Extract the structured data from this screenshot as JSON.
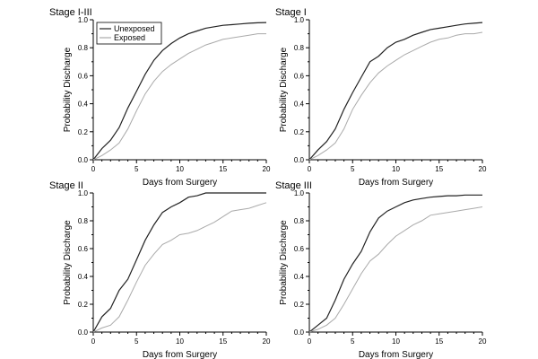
{
  "colors": {
    "unexposed": "#222222",
    "exposed": "#aaaaaa",
    "axis": "#000000"
  },
  "legend": {
    "items": [
      "Unexposed",
      "Exposed"
    ],
    "placement": "top-left"
  },
  "chart_data": [
    {
      "type": "line",
      "title": "Stage I-III",
      "xlabel": "Days from Surgery",
      "ylabel": "Probability Discharge",
      "xlim": [
        0,
        20
      ],
      "ylim": [
        0,
        1.0
      ],
      "xticks": [
        "0",
        "5",
        "10",
        "15",
        "20"
      ],
      "yticks": [
        "0.0",
        "0.2",
        "0.4",
        "0.6",
        "0.8",
        "1.0"
      ],
      "grid": false,
      "legend": "top-left",
      "series": [
        {
          "name": "Unexposed",
          "x": [
            0,
            1,
            2,
            3,
            4,
            5,
            6,
            7,
            8,
            9,
            10,
            11,
            12,
            13,
            14,
            15,
            16,
            17,
            18,
            19,
            20
          ],
          "y": [
            0.0,
            0.08,
            0.14,
            0.23,
            0.37,
            0.49,
            0.61,
            0.71,
            0.78,
            0.83,
            0.87,
            0.9,
            0.92,
            0.94,
            0.95,
            0.96,
            0.965,
            0.97,
            0.975,
            0.978,
            0.98
          ]
        },
        {
          "name": "Exposed",
          "x": [
            0,
            1,
            2,
            3,
            4,
            5,
            6,
            7,
            8,
            9,
            10,
            11,
            12,
            13,
            14,
            15,
            16,
            17,
            18,
            19,
            20
          ],
          "y": [
            0.0,
            0.03,
            0.07,
            0.12,
            0.22,
            0.35,
            0.47,
            0.56,
            0.63,
            0.68,
            0.72,
            0.76,
            0.79,
            0.82,
            0.84,
            0.86,
            0.87,
            0.88,
            0.89,
            0.9,
            0.9
          ]
        }
      ]
    },
    {
      "type": "line",
      "title": "Stage I",
      "xlabel": "Days from Surgery",
      "ylabel": "Probability Discharge",
      "xlim": [
        0,
        20
      ],
      "ylim": [
        0,
        1.0
      ],
      "xticks": [
        "0",
        "5",
        "10",
        "15",
        "20"
      ],
      "yticks": [
        "0.0",
        "0.2",
        "0.4",
        "0.6",
        "0.8",
        "1.0"
      ],
      "grid": false,
      "series": [
        {
          "name": "Unexposed",
          "x": [
            0,
            1,
            2,
            3,
            4,
            5,
            6,
            7,
            8,
            9,
            10,
            11,
            12,
            13,
            14,
            15,
            16,
            17,
            18,
            19,
            20
          ],
          "y": [
            0.0,
            0.07,
            0.13,
            0.22,
            0.36,
            0.48,
            0.59,
            0.7,
            0.74,
            0.8,
            0.84,
            0.86,
            0.89,
            0.91,
            0.93,
            0.94,
            0.95,
            0.96,
            0.97,
            0.975,
            0.98
          ]
        },
        {
          "name": "Exposed",
          "x": [
            0,
            1,
            2,
            3,
            4,
            5,
            6,
            7,
            8,
            9,
            10,
            11,
            12,
            13,
            14,
            15,
            16,
            17,
            18,
            19,
            20
          ],
          "y": [
            0.0,
            0.03,
            0.07,
            0.12,
            0.22,
            0.36,
            0.46,
            0.55,
            0.62,
            0.67,
            0.71,
            0.75,
            0.78,
            0.81,
            0.84,
            0.86,
            0.87,
            0.89,
            0.9,
            0.9,
            0.91
          ]
        }
      ]
    },
    {
      "type": "line",
      "title": "Stage II",
      "xlabel": "Days from Surgery",
      "ylabel": "Probability Discharge",
      "xlim": [
        0,
        20
      ],
      "ylim": [
        0,
        1.0
      ],
      "xticks": [
        "0",
        "5",
        "10",
        "15",
        "20"
      ],
      "yticks": [
        "0.0",
        "0.2",
        "0.4",
        "0.6",
        "0.8",
        "1.0"
      ],
      "grid": false,
      "series": [
        {
          "name": "Unexposed",
          "x": [
            0,
            1,
            2,
            3,
            4,
            5,
            6,
            7,
            8,
            9,
            10,
            11,
            12,
            13,
            14,
            15,
            16,
            17,
            18,
            19,
            20
          ],
          "y": [
            0.0,
            0.11,
            0.17,
            0.3,
            0.38,
            0.52,
            0.66,
            0.77,
            0.86,
            0.9,
            0.93,
            0.97,
            0.98,
            1.0,
            1.0,
            1.0,
            1.0,
            1.0,
            1.0,
            1.0,
            1.0
          ]
        },
        {
          "name": "Exposed",
          "x": [
            0,
            1,
            2,
            3,
            4,
            5,
            6,
            7,
            8,
            9,
            10,
            11,
            12,
            13,
            14,
            15,
            16,
            17,
            18,
            19,
            20
          ],
          "y": [
            0.0,
            0.03,
            0.05,
            0.11,
            0.23,
            0.36,
            0.48,
            0.56,
            0.63,
            0.66,
            0.7,
            0.71,
            0.73,
            0.76,
            0.79,
            0.83,
            0.87,
            0.88,
            0.89,
            0.91,
            0.93
          ]
        }
      ]
    },
    {
      "type": "line",
      "title": "Stage III",
      "xlabel": "Days from Surgery",
      "ylabel": "Probability Discharge",
      "xlim": [
        0,
        20
      ],
      "ylim": [
        0,
        1.0
      ],
      "xticks": [
        "0",
        "5",
        "10",
        "15",
        "20"
      ],
      "yticks": [
        "0.0",
        "0.2",
        "0.4",
        "0.6",
        "0.8",
        "1.0"
      ],
      "grid": false,
      "series": [
        {
          "name": "Unexposed",
          "x": [
            0,
            1,
            2,
            3,
            4,
            5,
            6,
            7,
            8,
            9,
            10,
            11,
            12,
            13,
            14,
            15,
            16,
            17,
            18,
            19,
            20
          ],
          "y": [
            0.0,
            0.05,
            0.1,
            0.23,
            0.38,
            0.49,
            0.58,
            0.72,
            0.82,
            0.87,
            0.9,
            0.93,
            0.95,
            0.96,
            0.97,
            0.975,
            0.98,
            0.98,
            0.985,
            0.985,
            0.985
          ]
        },
        {
          "name": "Exposed",
          "x": [
            0,
            1,
            2,
            3,
            4,
            5,
            6,
            7,
            8,
            9,
            10,
            11,
            12,
            13,
            14,
            15,
            16,
            17,
            18,
            19,
            20
          ],
          "y": [
            0.0,
            0.02,
            0.05,
            0.1,
            0.2,
            0.31,
            0.42,
            0.51,
            0.56,
            0.63,
            0.69,
            0.73,
            0.77,
            0.8,
            0.84,
            0.85,
            0.86,
            0.87,
            0.88,
            0.89,
            0.9
          ]
        }
      ]
    }
  ]
}
